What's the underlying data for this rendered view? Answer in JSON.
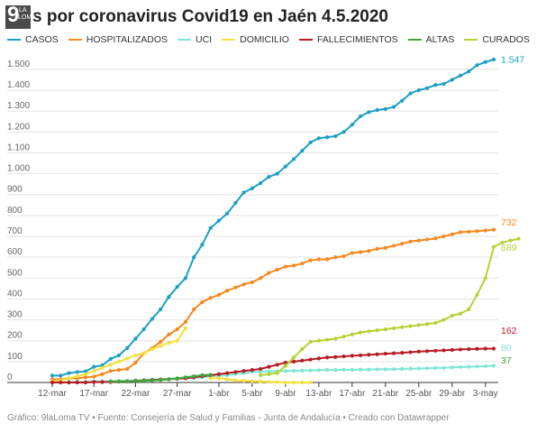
{
  "header": {
    "logo": {
      "number": "9",
      "line1": "LA",
      "line2": "LOMA"
    },
    "title": "s por coronavirus Covid19 en Jaén 4.5.2020"
  },
  "footer": {
    "text": "Gráfico: 9laLoma TV • Fuente: Consejería de Salud y Familias - Junta de Andalucía • Creado con Datawrapper"
  },
  "chart_data": {
    "type": "line",
    "title": "s por coronavirus Covid19 en Jaén 4.5.2020",
    "xlabel": "",
    "ylabel": "",
    "ylim": [
      0,
      1547
    ],
    "yticks": [
      0,
      100,
      200,
      300,
      400,
      500,
      600,
      700,
      800,
      900,
      1000,
      1100,
      1200,
      1300,
      1400,
      1500
    ],
    "ytick_labels": [
      "0",
      "100",
      "200",
      "300",
      "400",
      "500",
      "600",
      "700",
      "800",
      "900",
      "1.000",
      "1.100",
      "1.200",
      "1.300",
      "1.400",
      "1.500"
    ],
    "x_start": "2020-03-12",
    "x_end": "2020-05-04",
    "xticks": [
      "2020-03-12",
      "2020-03-17",
      "2020-03-22",
      "2020-03-27",
      "2020-04-01",
      "2020-04-05",
      "2020-04-09",
      "2020-04-13",
      "2020-04-17",
      "2020-04-21",
      "2020-04-25",
      "2020-04-29",
      "2020-05-03"
    ],
    "xtick_labels": [
      "12-mar",
      "17-mar",
      "22-mar",
      "27-mar",
      "1-abr",
      "5-abr",
      "9-abr",
      "13-abr",
      "17-abr",
      "21-abr",
      "25-abr",
      "29-abr",
      "3-may"
    ],
    "legend_position": "top",
    "grid": true,
    "series": [
      {
        "name": "CASOS",
        "color": "#1d9fc4",
        "start": "2020-03-12",
        "end_label": "1.547",
        "values": [
          33,
          33,
          45,
          50,
          53,
          75,
          82,
          113,
          130,
          165,
          210,
          255,
          305,
          350,
          410,
          458,
          500,
          600,
          660,
          740,
          775,
          810,
          860,
          910,
          930,
          955,
          985,
          1000,
          1035,
          1070,
          1110,
          1150,
          1170,
          1175,
          1180,
          1200,
          1235,
          1275,
          1295,
          1305,
          1310,
          1320,
          1350,
          1385,
          1400,
          1410,
          1425,
          1430,
          1450,
          1470,
          1490,
          1520,
          1535,
          1547
        ]
      },
      {
        "name": "HOSPITALIZADOS",
        "color": "#f4891f",
        "start": "2020-03-12",
        "end_label": "732",
        "values": [
          15,
          15,
          20,
          20,
          25,
          28,
          40,
          55,
          60,
          65,
          95,
          140,
          165,
          195,
          230,
          255,
          290,
          350,
          385,
          405,
          420,
          440,
          455,
          470,
          480,
          500,
          525,
          540,
          555,
          560,
          570,
          585,
          590,
          590,
          600,
          605,
          620,
          625,
          630,
          640,
          645,
          655,
          665,
          675,
          680,
          685,
          690,
          700,
          710,
          720,
          722,
          725,
          728,
          732
        ]
      },
      {
        "name": "UCI",
        "color": "#7ee7d4",
        "start": "2020-03-12",
        "end_label": "80",
        "values": [
          2,
          2,
          2,
          3,
          3,
          5,
          5,
          6,
          7,
          8,
          10,
          12,
          14,
          15,
          16,
          18,
          20,
          22,
          25,
          30,
          32,
          35,
          40,
          45,
          50,
          52,
          53,
          54,
          55,
          56,
          57,
          58,
          59,
          60,
          60,
          61,
          61,
          62,
          62,
          63,
          63,
          64,
          65,
          66,
          67,
          68,
          69,
          70,
          72,
          74,
          75,
          77,
          78,
          80
        ]
      },
      {
        "name": "DOMICILIO",
        "color": "#f7e03a",
        "start": "2020-03-12",
        "values": [
          5,
          10,
          20,
          30,
          40,
          55,
          70,
          85,
          100,
          115,
          130,
          140,
          160,
          175,
          190,
          200,
          260,
          null,
          null,
          20,
          20,
          15,
          10,
          8,
          6,
          5,
          3,
          2,
          0,
          0,
          0,
          0
        ]
      },
      {
        "name": "FALLECIMIENTOS",
        "color": "#b71c24",
        "start": "2020-03-12",
        "end_label": "162",
        "values": [
          0,
          0,
          0,
          0,
          0,
          2,
          2,
          2,
          4,
          5,
          8,
          10,
          12,
          14,
          16,
          18,
          20,
          25,
          30,
          35,
          40,
          45,
          50,
          55,
          60,
          65,
          75,
          85,
          95,
          100,
          105,
          110,
          115,
          120,
          122,
          125,
          128,
          130,
          133,
          135,
          138,
          140,
          142,
          145,
          148,
          150,
          152,
          154,
          156,
          158,
          160,
          161,
          162,
          162
        ]
      },
      {
        "name": "ALTAS",
        "color": "#3ea63a",
        "start": "2020-03-19",
        "end_label": "37",
        "values": [
          5,
          5,
          6,
          7,
          8,
          10,
          12,
          15,
          20,
          25,
          30,
          35,
          37
        ]
      },
      {
        "name": "CURADOS",
        "color": "#b5d335",
        "start": "2020-04-06",
        "end_label": "689",
        "values": [
          35,
          40,
          45,
          80,
          120,
          160,
          195,
          200,
          205,
          210,
          220,
          230,
          240,
          245,
          250,
          255,
          260,
          265,
          270,
          275,
          280,
          285,
          300,
          320,
          330,
          350,
          420,
          500,
          650,
          670,
          680,
          689
        ]
      }
    ]
  }
}
